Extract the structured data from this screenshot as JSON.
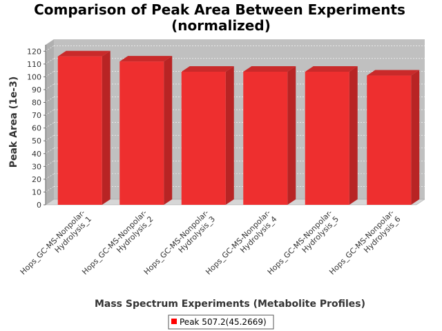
{
  "chart_data": {
    "type": "bar",
    "title": "Comparison of Peak Area Between Experiments",
    "subtitle": "(normalized)",
    "xlabel": "Mass Spectrum Experiments (Metabolite Profiles)",
    "ylabel": "Peak Area (1e-3)",
    "categories": [
      [
        "Hops_GC-MS-Nonpolar-",
        "Hydrolysis_1"
      ],
      [
        "Hops_GC-MS-Nonpolar-",
        "Hydrolysis_2"
      ],
      [
        "Hops_GC-MS-Nonpolar-",
        "Hydrolysis_3"
      ],
      [
        "Hops_GC-MS-Nonpolar-",
        "Hydrolysis_4"
      ],
      [
        "Hops_GC-MS-Nonpolar-",
        "Hydrolysis_5"
      ],
      [
        "Hops_GC-MS-Nonpolar-",
        "Hydrolysis_6"
      ]
    ],
    "series": [
      {
        "name": "Peak 507.2(45.2669)",
        "values": [
          116,
          112,
          104,
          104,
          104,
          101
        ]
      }
    ],
    "ylim": [
      0,
      125
    ],
    "yticks": [
      0,
      10,
      20,
      30,
      40,
      50,
      60,
      70,
      80,
      90,
      100,
      110,
      120
    ],
    "grid": true,
    "legend_position": "bottom",
    "colors": {
      "bar_front": "#ee2f2f",
      "bar_side": "#b82424",
      "bar_top": "#c92a2a",
      "plot_back": "#c0c0c0",
      "plot_floor": "#d6d6d6",
      "legend_swatch": "#ff0000"
    }
  }
}
